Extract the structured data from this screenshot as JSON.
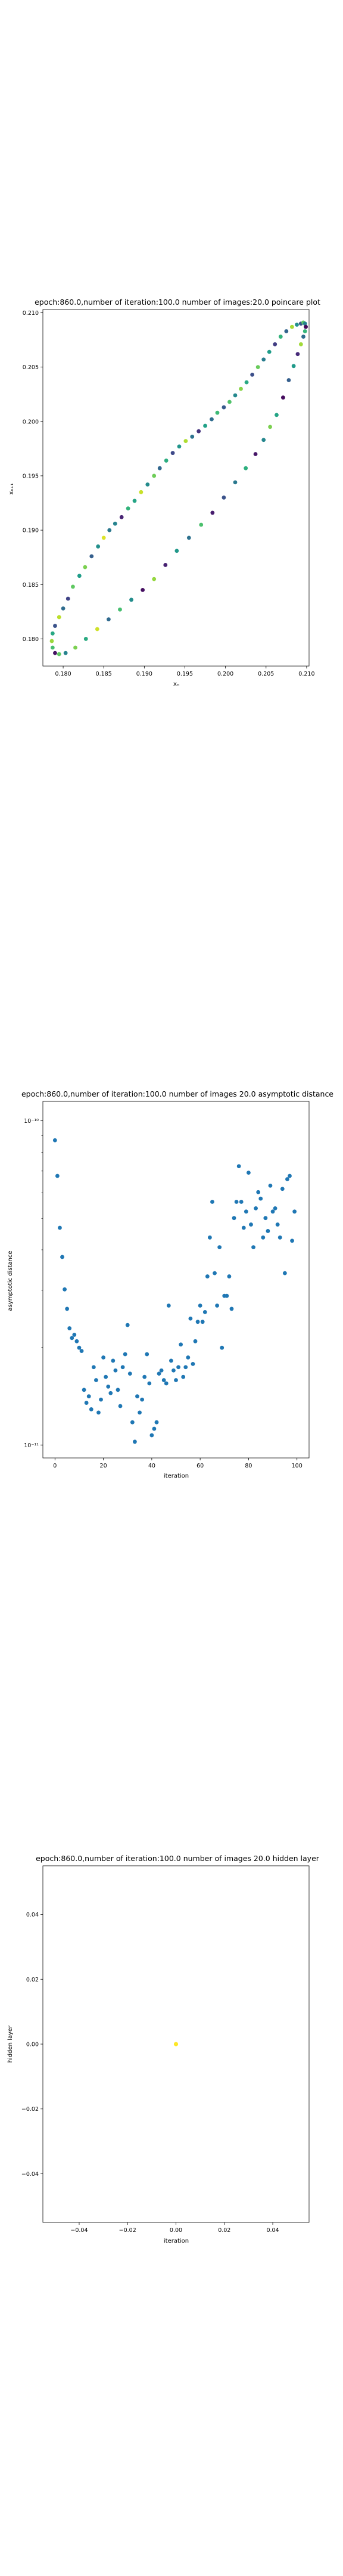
{
  "charts": [
    {
      "title": "epoch:860.0,number of iteration:100.0 number of images:20.0 poincare plot",
      "xlabel": "xₙ",
      "ylabel": "xₙ₊₁",
      "x_ticks": [
        "0.180",
        "0.185",
        "0.190",
        "0.195",
        "0.200",
        "0.205",
        "0.210"
      ],
      "y_ticks": [
        "0.180",
        "0.185",
        "0.190",
        "0.195",
        "0.200",
        "0.205",
        "0.210"
      ]
    },
    {
      "title": "epoch:860.0,number of iteration:100.0  number of images 20.0 asymptotic distance",
      "xlabel": "iteration",
      "ylabel": "asymptotic distance",
      "x_ticks": [
        "0",
        "20",
        "40",
        "60",
        "80",
        "100"
      ],
      "y_ticks": [
        "10⁻¹¹",
        "10⁻¹⁰"
      ]
    },
    {
      "title": "epoch:860.0,number of iteration:100.0  number of images 20.0 hidden layer",
      "xlabel": "iteration",
      "ylabel": "hidden layer",
      "x_ticks": [
        "−0.04",
        "−0.02",
        "0.00",
        "0.02",
        "0.04"
      ],
      "y_ticks": [
        "−0.04",
        "−0.02",
        "0.00",
        "0.02",
        "0.04"
      ]
    }
  ],
  "chart_data": [
    {
      "type": "scatter",
      "title": "epoch:860.0,number of iteration:100.0 number of images:20.0 poincare plot",
      "xlabel": "xₙ",
      "ylabel": "xₙ₊₁",
      "xlim": [
        0.1775,
        0.2103
      ],
      "ylim": [
        0.1775,
        0.2103
      ],
      "colormap": "viridis",
      "points": [
        {
          "x": 0.179,
          "y": 0.1787,
          "c": 0.05
        },
        {
          "x": 0.1787,
          "y": 0.1792,
          "c": 0.7
        },
        {
          "x": 0.1786,
          "y": 0.1798,
          "c": 0.85
        },
        {
          "x": 0.1787,
          "y": 0.1805,
          "c": 0.6
        },
        {
          "x": 0.179,
          "y": 0.1812,
          "c": 0.25
        },
        {
          "x": 0.1795,
          "y": 0.182,
          "c": 0.9
        },
        {
          "x": 0.18,
          "y": 0.1828,
          "c": 0.35
        },
        {
          "x": 0.1806,
          "y": 0.1837,
          "c": 0.2
        },
        {
          "x": 0.1812,
          "y": 0.1848,
          "c": 0.75
        },
        {
          "x": 0.182,
          "y": 0.1858,
          "c": 0.55
        },
        {
          "x": 0.1827,
          "y": 0.1866,
          "c": 0.8
        },
        {
          "x": 0.1835,
          "y": 0.1876,
          "c": 0.3
        },
        {
          "x": 0.1843,
          "y": 0.1885,
          "c": 0.5
        },
        {
          "x": 0.185,
          "y": 0.1893,
          "c": 0.95
        },
        {
          "x": 0.1857,
          "y": 0.19,
          "c": 0.4
        },
        {
          "x": 0.1864,
          "y": 0.1906,
          "c": 0.45
        },
        {
          "x": 0.1872,
          "y": 0.1912,
          "c": 0.1
        },
        {
          "x": 0.188,
          "y": 0.192,
          "c": 0.65
        },
        {
          "x": 0.1888,
          "y": 0.1927,
          "c": 0.58
        },
        {
          "x": 0.1896,
          "y": 0.1935,
          "c": 0.92
        },
        {
          "x": 0.1904,
          "y": 0.1942,
          "c": 0.48
        },
        {
          "x": 0.1912,
          "y": 0.195,
          "c": 0.78
        },
        {
          "x": 0.1919,
          "y": 0.1957,
          "c": 0.33
        },
        {
          "x": 0.1927,
          "y": 0.1964,
          "c": 0.62
        },
        {
          "x": 0.1935,
          "y": 0.1971,
          "c": 0.22
        },
        {
          "x": 0.1943,
          "y": 0.1977,
          "c": 0.52
        },
        {
          "x": 0.1951,
          "y": 0.1982,
          "c": 0.88
        },
        {
          "x": 0.1959,
          "y": 0.1986,
          "c": 0.38
        },
        {
          "x": 0.1967,
          "y": 0.1991,
          "c": 0.15
        },
        {
          "x": 0.1975,
          "y": 0.1996,
          "c": 0.57
        },
        {
          "x": 0.1983,
          "y": 0.2002,
          "c": 0.35
        },
        {
          "x": 0.199,
          "y": 0.2008,
          "c": 0.68
        },
        {
          "x": 0.1998,
          "y": 0.2013,
          "c": 0.28
        },
        {
          "x": 0.2005,
          "y": 0.2018,
          "c": 0.72
        },
        {
          "x": 0.2012,
          "y": 0.2024,
          "c": 0.47
        },
        {
          "x": 0.2019,
          "y": 0.203,
          "c": 0.82
        },
        {
          "x": 0.2026,
          "y": 0.2036,
          "c": 0.6
        },
        {
          "x": 0.2033,
          "y": 0.2043,
          "c": 0.24
        },
        {
          "x": 0.204,
          "y": 0.205,
          "c": 0.77
        },
        {
          "x": 0.2047,
          "y": 0.2057,
          "c": 0.42
        },
        {
          "x": 0.2054,
          "y": 0.2064,
          "c": 0.55
        },
        {
          "x": 0.2061,
          "y": 0.2071,
          "c": 0.18
        },
        {
          "x": 0.2068,
          "y": 0.2078,
          "c": 0.65
        },
        {
          "x": 0.2075,
          "y": 0.2083,
          "c": 0.32
        },
        {
          "x": 0.2082,
          "y": 0.2087,
          "c": 0.87
        },
        {
          "x": 0.2088,
          "y": 0.2089,
          "c": 0.5
        },
        {
          "x": 0.2093,
          "y": 0.209,
          "c": 0.27
        },
        {
          "x": 0.2096,
          "y": 0.2091,
          "c": 0.74
        },
        {
          "x": 0.2098,
          "y": 0.209,
          "c": 0.44
        },
        {
          "x": 0.2099,
          "y": 0.2087,
          "c": 0.02
        },
        {
          "x": 0.2098,
          "y": 0.2083,
          "c": 0.66
        },
        {
          "x": 0.2096,
          "y": 0.2078,
          "c": 0.36
        },
        {
          "x": 0.2093,
          "y": 0.2071,
          "c": 0.86
        },
        {
          "x": 0.2089,
          "y": 0.2062,
          "c": 0.12
        },
        {
          "x": 0.2084,
          "y": 0.2051,
          "c": 0.54
        },
        {
          "x": 0.2078,
          "y": 0.2038,
          "c": 0.3
        },
        {
          "x": 0.2071,
          "y": 0.2022,
          "c": 0.03
        },
        {
          "x": 0.2063,
          "y": 0.2006,
          "c": 0.58
        },
        {
          "x": 0.2055,
          "y": 0.1995,
          "c": 0.8
        },
        {
          "x": 0.2047,
          "y": 0.1983,
          "c": 0.46
        },
        {
          "x": 0.2037,
          "y": 0.197,
          "c": 0.06
        },
        {
          "x": 0.2025,
          "y": 0.1957,
          "c": 0.63
        },
        {
          "x": 0.2012,
          "y": 0.1944,
          "c": 0.4
        },
        {
          "x": 0.1998,
          "y": 0.193,
          "c": 0.25
        },
        {
          "x": 0.1984,
          "y": 0.1916,
          "c": 0.08
        },
        {
          "x": 0.197,
          "y": 0.1905,
          "c": 0.71
        },
        {
          "x": 0.1955,
          "y": 0.1893,
          "c": 0.37
        },
        {
          "x": 0.194,
          "y": 0.1881,
          "c": 0.53
        },
        {
          "x": 0.1926,
          "y": 0.1868,
          "c": 0.09
        },
        {
          "x": 0.1912,
          "y": 0.1855,
          "c": 0.84
        },
        {
          "x": 0.1898,
          "y": 0.1845,
          "c": 0.04
        },
        {
          "x": 0.1884,
          "y": 0.1836,
          "c": 0.49
        },
        {
          "x": 0.187,
          "y": 0.1827,
          "c": 0.7
        },
        {
          "x": 0.1856,
          "y": 0.1818,
          "c": 0.34
        },
        {
          "x": 0.1842,
          "y": 0.1809,
          "c": 0.93
        },
        {
          "x": 0.1828,
          "y": 0.18,
          "c": 0.61
        },
        {
          "x": 0.1815,
          "y": 0.1792,
          "c": 0.8
        },
        {
          "x": 0.1803,
          "y": 0.1787,
          "c": 0.45
        },
        {
          "x": 0.1795,
          "y": 0.1786,
          "c": 0.75
        }
      ]
    },
    {
      "type": "scatter",
      "title": "epoch:860.0,number of iteration:100.0  number of images 20.0 asymptotic distance",
      "xlabel": "iteration",
      "ylabel": "asymptotic distance",
      "xlim": [
        -5,
        105
      ],
      "ylim_log10": [
        -11.04,
        -9.94
      ],
      "yscale": "log",
      "color": "#1f77b4",
      "x": [
        0,
        1,
        2,
        3,
        4,
        5,
        6,
        7,
        8,
        9,
        10,
        11,
        12,
        13,
        14,
        15,
        16,
        17,
        18,
        19,
        20,
        21,
        22,
        23,
        24,
        25,
        26,
        27,
        28,
        29,
        30,
        31,
        32,
        33,
        34,
        35,
        36,
        37,
        38,
        39,
        40,
        41,
        42,
        43,
        44,
        45,
        46,
        47,
        48,
        49,
        50,
        51,
        52,
        53,
        54,
        55,
        56,
        57,
        58,
        59,
        60,
        61,
        62,
        63,
        64,
        65,
        66,
        67,
        68,
        69,
        70,
        71,
        72,
        73,
        74,
        75,
        76,
        77,
        78,
        79,
        80,
        81,
        82,
        83,
        84,
        85,
        86,
        87,
        88,
        89,
        90,
        91,
        92,
        93,
        94,
        95,
        96,
        97,
        98,
        99
      ],
      "y": [
        -10.06,
        -10.17,
        -10.33,
        -10.42,
        -10.52,
        -10.58,
        -10.64,
        -10.67,
        -10.66,
        -10.68,
        -10.7,
        -10.71,
        -10.83,
        -10.87,
        -10.85,
        -10.89,
        -10.76,
        -10.8,
        -10.9,
        -10.86,
        -10.73,
        -10.79,
        -10.82,
        -10.84,
        -10.74,
        -10.77,
        -10.83,
        -10.88,
        -10.76,
        -10.72,
        -10.63,
        -10.78,
        -10.93,
        -10.99,
        -10.85,
        -10.9,
        -10.86,
        -10.79,
        -10.72,
        -10.81,
        -10.97,
        -10.95,
        -10.93,
        -10.78,
        -10.77,
        -10.8,
        -10.81,
        -10.57,
        -10.74,
        -10.77,
        -10.8,
        -10.76,
        -10.69,
        -10.79,
        -10.76,
        -10.73,
        -10.61,
        -10.75,
        -10.68,
        -10.62,
        -10.57,
        -10.62,
        -10.59,
        -10.48,
        -10.36,
        -10.25,
        -10.47,
        -10.57,
        -10.39,
        -10.7,
        -10.54,
        -10.54,
        -10.48,
        -10.58,
        -10.3,
        -10.25,
        -10.14,
        -10.25,
        -10.33,
        -10.28,
        -10.16,
        -10.32,
        -10.39,
        -10.27,
        -10.22,
        -10.24,
        -10.36,
        -10.3,
        -10.34,
        -10.2,
        -10.28,
        -10.27,
        -10.32,
        -10.36,
        -10.21,
        -10.47,
        -10.18,
        -10.17,
        -10.37,
        -10.28
      ]
    },
    {
      "type": "scatter",
      "title": "epoch:860.0,number of iteration:100.0  number of images 20.0 hidden layer",
      "xlabel": "iteration",
      "ylabel": "hidden layer",
      "xlim": [
        -0.055,
        0.055
      ],
      "ylim": [
        -0.055,
        0.055
      ],
      "color": "#fde725",
      "points": [
        {
          "x": 0.0,
          "y": 0.0
        }
      ]
    }
  ]
}
